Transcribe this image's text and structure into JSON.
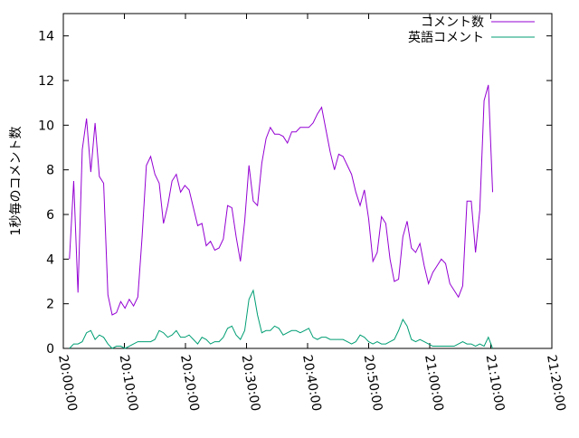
{
  "chart_data": {
    "type": "line",
    "ylabel": "1秒毎のコメント数",
    "x": [
      "20:01:00",
      "20:01:42",
      "20:02:24",
      "20:03:06",
      "20:03:48",
      "20:04:30",
      "20:05:12",
      "20:05:54",
      "20:06:36",
      "20:07:18",
      "20:08:00",
      "20:08:42",
      "20:09:24",
      "20:10:06",
      "20:10:48",
      "20:11:30",
      "20:12:12",
      "20:12:54",
      "20:13:36",
      "20:14:18",
      "20:15:00",
      "20:15:42",
      "20:16:24",
      "20:17:06",
      "20:17:48",
      "20:18:30",
      "20:19:12",
      "20:19:54",
      "20:20:36",
      "20:21:18",
      "20:22:00",
      "20:22:42",
      "20:23:24",
      "20:24:06",
      "20:24:48",
      "20:25:30",
      "20:26:12",
      "20:26:54",
      "20:27:36",
      "20:28:18",
      "20:29:00",
      "20:29:42",
      "20:30:24",
      "20:31:06",
      "20:31:48",
      "20:32:30",
      "20:33:12",
      "20:33:54",
      "20:34:36",
      "20:35:18",
      "20:36:00",
      "20:36:42",
      "20:37:24",
      "20:38:06",
      "20:38:48",
      "20:39:30",
      "20:40:12",
      "20:40:54",
      "20:41:36",
      "20:42:18",
      "20:43:00",
      "20:43:42",
      "20:44:24",
      "20:45:06",
      "20:45:48",
      "20:46:30",
      "20:47:12",
      "20:47:54",
      "20:48:36",
      "20:49:18",
      "20:50:00",
      "20:50:42",
      "20:51:24",
      "20:52:06",
      "20:52:48",
      "20:53:30",
      "20:54:12",
      "20:54:54",
      "20:55:36",
      "20:56:18",
      "20:57:00",
      "20:57:42",
      "20:58:24",
      "20:59:06",
      "20:59:48",
      "21:00:30",
      "21:01:12",
      "21:01:54",
      "21:02:36",
      "21:03:18",
      "21:04:00",
      "21:04:42",
      "21:05:24",
      "21:06:06",
      "21:06:48",
      "21:07:30",
      "21:08:12",
      "21:08:54",
      "21:09:36",
      "21:10:18"
    ],
    "series": [
      {
        "name": "コメント数",
        "color": "#9400d3",
        "values": [
          4.0,
          7.5,
          2.5,
          8.9,
          10.3,
          7.9,
          10.1,
          7.7,
          7.4,
          2.4,
          1.5,
          1.6,
          2.1,
          1.8,
          2.2,
          1.9,
          2.3,
          5.0,
          8.2,
          8.6,
          7.8,
          7.4,
          5.6,
          6.4,
          7.5,
          7.8,
          7.0,
          7.3,
          7.1,
          6.3,
          5.5,
          5.6,
          4.6,
          4.8,
          4.4,
          4.5,
          4.9,
          6.4,
          6.3,
          5.0,
          3.9,
          5.7,
          8.2,
          6.6,
          6.4,
          8.3,
          9.4,
          9.9,
          9.6,
          9.6,
          9.5,
          9.2,
          9.7,
          9.7,
          9.9,
          9.9,
          9.9,
          10.1,
          10.5,
          10.8,
          9.8,
          8.8,
          8.0,
          8.7,
          8.6,
          8.2,
          7.8,
          7.0,
          6.4,
          7.1,
          5.8,
          3.9,
          4.3,
          5.9,
          5.6,
          4.0,
          3.0,
          3.1,
          5.0,
          5.7,
          4.5,
          4.3,
          4.7,
          3.7,
          2.9,
          3.4,
          3.7,
          4.0,
          3.8,
          2.9,
          2.6,
          2.3,
          2.8,
          6.6,
          6.6,
          4.3,
          6.2,
          11.1,
          11.8,
          7.0
        ]
      },
      {
        "name": "英語コメント",
        "color": "#009e73",
        "values": [
          0.0,
          0.2,
          0.2,
          0.3,
          0.7,
          0.8,
          0.4,
          0.6,
          0.5,
          0.2,
          0.0,
          0.1,
          0.1,
          0.0,
          0.1,
          0.2,
          0.3,
          0.3,
          0.3,
          0.3,
          0.4,
          0.8,
          0.7,
          0.5,
          0.6,
          0.8,
          0.5,
          0.5,
          0.6,
          0.4,
          0.2,
          0.5,
          0.4,
          0.2,
          0.3,
          0.3,
          0.5,
          0.9,
          1.0,
          0.6,
          0.4,
          0.8,
          2.2,
          2.6,
          1.5,
          0.7,
          0.8,
          0.8,
          1.0,
          0.9,
          0.6,
          0.7,
          0.8,
          0.8,
          0.7,
          0.8,
          0.9,
          0.5,
          0.4,
          0.5,
          0.5,
          0.4,
          0.4,
          0.4,
          0.4,
          0.3,
          0.2,
          0.3,
          0.6,
          0.5,
          0.3,
          0.2,
          0.3,
          0.2,
          0.2,
          0.3,
          0.4,
          0.8,
          1.3,
          1.0,
          0.4,
          0.3,
          0.4,
          0.3,
          0.2,
          0.1,
          0.1,
          0.1,
          0.1,
          0.1,
          0.1,
          0.2,
          0.3,
          0.2,
          0.2,
          0.1,
          0.2,
          0.1,
          0.5,
          0.0
        ]
      }
    ],
    "xlim": [
      "20:00:00",
      "21:20:00"
    ],
    "xticks": [
      "20:00:00",
      "20:10:00",
      "20:20:00",
      "20:30:00",
      "20:40:00",
      "20:50:00",
      "21:00:00",
      "21:10:00",
      "21:20:00"
    ],
    "ylim": [
      0,
      15
    ],
    "yticks": [
      0,
      2,
      4,
      6,
      8,
      10,
      12,
      14
    ],
    "legend": "top-right"
  }
}
